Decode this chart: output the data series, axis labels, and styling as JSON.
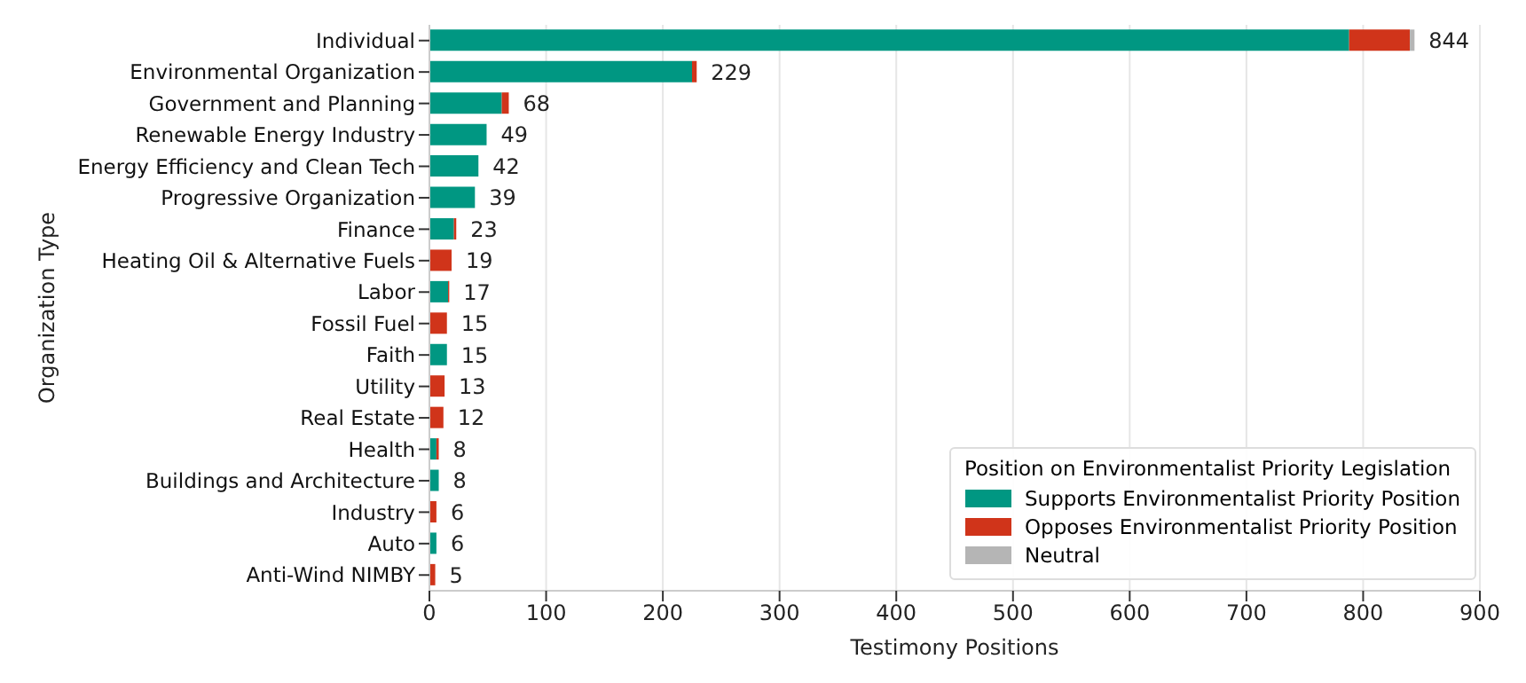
{
  "chart_data": {
    "type": "bar",
    "orientation": "horizontal",
    "stacked": true,
    "xlabel": "Testimony Positions",
    "ylabel": "Organization Type",
    "legend_title": "Position on Environmentalist Priority Legislation",
    "categories": [
      "Individual",
      "Environmental Organization",
      "Government and Planning",
      "Renewable Energy Industry",
      "Energy Efficiency and Clean Tech",
      "Progressive Organization",
      "Finance",
      "Heating Oil & Alternative Fuels",
      "Labor",
      "Fossil Fuel",
      "Faith",
      "Utility",
      "Real Estate",
      "Health",
      "Buildings and Architecture",
      "Industry",
      "Auto",
      "Anti-Wind NIMBY"
    ],
    "series": [
      {
        "name": "Supports Environmentalist Priority Position",
        "color": "#009782",
        "values": [
          788,
          225,
          62,
          49,
          42,
          39,
          21,
          0,
          16,
          0,
          15,
          0,
          0,
          6,
          8,
          0,
          6,
          0
        ]
      },
      {
        "name": "Opposes Environmentalist Priority Position",
        "color": "#d0341a",
        "values": [
          52,
          4,
          6,
          0,
          0,
          0,
          2,
          19,
          1,
          15,
          0,
          13,
          12,
          2,
          0,
          6,
          0,
          5
        ]
      },
      {
        "name": "Neutral",
        "color": "#b5b5b5",
        "values": [
          4,
          0,
          0,
          0,
          0,
          0,
          0,
          0,
          0,
          0,
          0,
          0,
          0,
          0,
          0,
          0,
          0,
          0
        ]
      }
    ],
    "totals": [
      "844",
      "229",
      "68",
      "49",
      "42",
      "39",
      "23",
      "19",
      "17",
      "15",
      "15",
      "13",
      "12",
      "8",
      "8",
      "6",
      "6",
      "5"
    ],
    "xlim": [
      0,
      900
    ],
    "xticks": [
      0,
      100,
      200,
      300,
      400,
      500,
      600,
      700,
      800,
      900
    ],
    "grid": "x",
    "legend": "bottom right"
  }
}
